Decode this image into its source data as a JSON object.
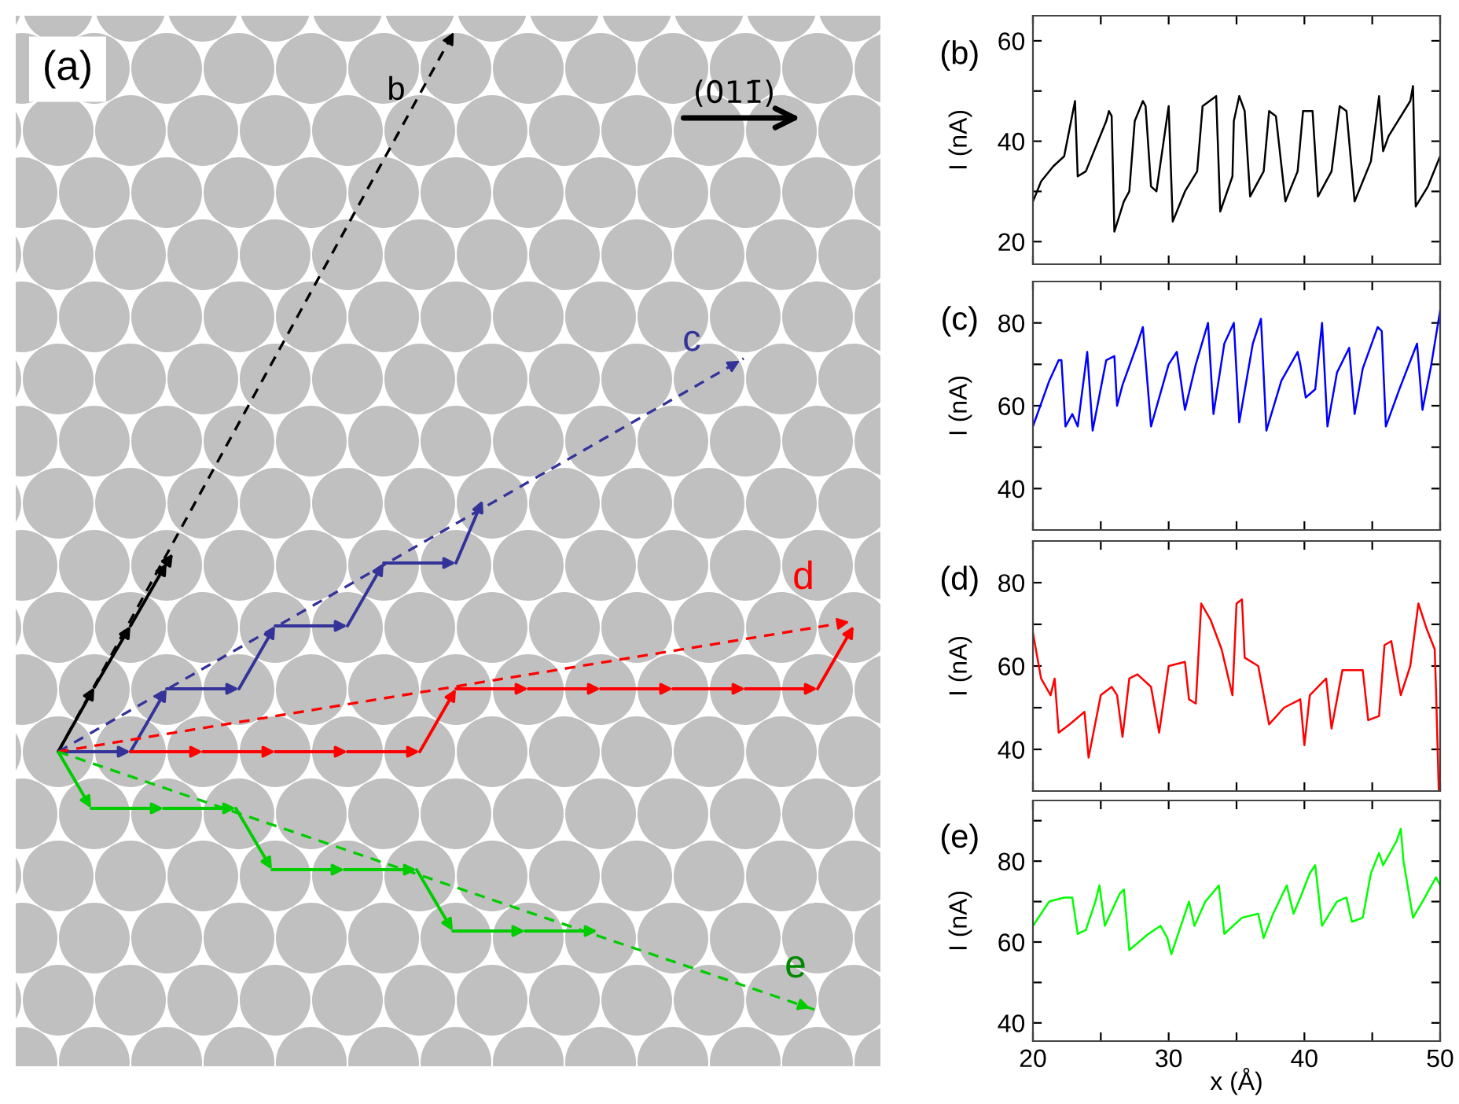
{
  "chart_data": [
    {
      "type": "other",
      "annotations": [
        "(a)",
        "b",
        "c",
        "d",
        "e",
        "(011̄)"
      ]
    },
    {
      "type": "line",
      "title": "(b)",
      "ylabel": "I (nA)",
      "tick_labels": "y",
      "xlim": [
        20,
        50
      ],
      "ylim": [
        15.5,
        65
      ],
      "xticks": [
        20,
        {
          "value": 25,
          "label": null
        },
        30,
        {
          "value": 35,
          "label": null
        },
        40,
        {
          "value": 45,
          "label": null
        },
        50
      ],
      "yticks": [
        20,
        {
          "value": 30,
          "label": null
        },
        40,
        {
          "value": 50,
          "label": null
        },
        60
      ],
      "x": [
        20,
        20.6,
        21.5,
        22.3,
        23.1,
        23.3,
        23.9,
        25.4,
        25.6,
        25.8,
        26.0,
        26.7,
        27.1,
        27.5,
        28.1,
        28.3,
        28.7,
        29.1,
        30.0,
        30.3,
        31.2,
        32.1,
        32.5,
        33.5,
        33.8,
        34.7,
        34.8,
        35.2,
        35.6,
        36.0,
        37.0,
        37.4,
        37.9,
        38.6,
        39.5,
        39.9,
        40.6,
        41.0,
        42.0,
        42.6,
        43.1,
        43.7,
        44.9,
        45.5,
        45.8,
        46.2,
        47.8,
        48.0,
        48.2,
        49.1,
        50.0
      ],
      "series": [
        {
          "color": "#000000",
          "values": [
            28,
            32,
            35,
            37,
            48,
            33,
            34,
            44,
            46,
            45,
            22,
            28,
            30,
            44,
            48,
            47,
            31,
            30,
            47,
            24,
            30,
            34,
            47,
            49,
            26,
            33,
            44,
            49,
            46,
            29,
            34,
            46,
            45,
            28,
            34,
            46,
            46,
            29,
            34,
            47,
            46,
            28,
            36,
            49,
            38,
            41,
            48,
            51,
            27,
            31,
            37
          ]
        }
      ]
    },
    {
      "type": "line",
      "title": "(c)",
      "ylabel": "I (nA)",
      "tick_labels": "y",
      "xlim": [
        20,
        50
      ],
      "ylim": [
        30,
        90
      ],
      "xticks": [
        20,
        {
          "value": 25,
          "label": null
        },
        30,
        {
          "value": 35,
          "label": null
        },
        40,
        {
          "value": 45,
          "label": null
        },
        50
      ],
      "yticks": [
        40,
        {
          "value": 50,
          "label": null
        },
        60,
        {
          "value": 70,
          "label": null
        },
        80
      ],
      "x": [
        20,
        21.2,
        21.9,
        22.1,
        22.4,
        22.9,
        23.3,
        24.0,
        24.4,
        25.4,
        26.0,
        26.2,
        26.6,
        27.7,
        28.1,
        28.7,
        30.0,
        30.6,
        31.2,
        32.0,
        32.9,
        33.3,
        34.1,
        34.8,
        35.2,
        36.2,
        36.8,
        37.2,
        38.3,
        39.5,
        39.7,
        40.1,
        40.8,
        41.3,
        41.7,
        42.4,
        43.3,
        43.7,
        44.3,
        45.4,
        45.7,
        46.0,
        47.0,
        48.3,
        48.7,
        49.3,
        50.0
      ],
      "series": [
        {
          "color": "#0000ff",
          "values": [
            55,
            66,
            71,
            71,
            55,
            58,
            55,
            73,
            54,
            71,
            72,
            60,
            65,
            75,
            79,
            55,
            70,
            73,
            59,
            70,
            80,
            58,
            75,
            80,
            56,
            75,
            81,
            54,
            66,
            73,
            70,
            62,
            64,
            80,
            55,
            68,
            74,
            58,
            69,
            79,
            78,
            55,
            64,
            75,
            59,
            69,
            83
          ]
        }
      ]
    },
    {
      "type": "line",
      "title": "(d)",
      "ylabel": "I (nA)",
      "tick_labels": "y",
      "xlim": [
        20,
        50
      ],
      "ylim": [
        30,
        90
      ],
      "xticks": [
        20,
        {
          "value": 25,
          "label": null
        },
        30,
        {
          "value": 35,
          "label": null
        },
        40,
        {
          "value": 45,
          "label": null
        },
        50
      ],
      "yticks": [
        40,
        {
          "value": 50,
          "label": null
        },
        60,
        {
          "value": 70,
          "label": null
        },
        80
      ],
      "x": [
        20,
        20.6,
        21.3,
        21.6,
        21.9,
        22.7,
        23.8,
        24.1,
        25.0,
        25.8,
        26.2,
        26.6,
        27.1,
        27.7,
        28.7,
        29.3,
        30.0,
        31.2,
        31.5,
        32.0,
        32.4,
        33.1,
        33.9,
        34.7,
        35.0,
        35.4,
        35.6,
        36.6,
        37.4,
        38.5,
        39.7,
        40.0,
        40.4,
        41.6,
        42.0,
        42.8,
        44.3,
        44.7,
        45.5,
        45.9,
        46.4,
        47.1,
        47.8,
        48.4,
        49.0,
        49.6,
        49.7,
        49.9
      ],
      "series": [
        {
          "color": "#ff0000",
          "values": [
            68,
            57,
            53,
            57,
            44,
            46,
            49,
            38,
            53,
            55,
            53,
            43,
            57,
            58,
            55,
            44,
            60,
            61,
            52,
            51,
            75,
            71,
            64,
            53,
            75,
            76,
            62,
            60,
            46,
            50,
            52,
            41,
            53,
            57,
            45,
            59,
            59,
            47,
            48,
            65,
            66,
            53,
            60,
            75,
            69,
            64,
            54,
            30
          ]
        }
      ]
    },
    {
      "type": "line",
      "title": "(e)",
      "ylabel": "I (nA)",
      "xlabel": "x (Å)",
      "xlim": [
        20,
        50
      ],
      "ylim": [
        35.5,
        95
      ],
      "xticks": [
        20,
        {
          "value": 25,
          "label": null
        },
        30,
        {
          "value": 35,
          "label": null
        },
        40,
        {
          "value": 45,
          "label": null
        },
        50
      ],
      "yticks": [
        40,
        {
          "value": 50,
          "label": null
        },
        60,
        {
          "value": 70,
          "label": null
        },
        80,
        {
          "value": 90,
          "label": null
        }
      ],
      "x": [
        20,
        21.2,
        22.3,
        22.9,
        23.3,
        23.9,
        24.6,
        24.9,
        25.3,
        26.4,
        26.7,
        27.1,
        28.5,
        29.4,
        29.9,
        30.2,
        30.8,
        31.5,
        31.9,
        32.7,
        33.7,
        34.1,
        35.4,
        36.6,
        37.0,
        37.7,
        38.7,
        39.2,
        39.7,
        40.4,
        40.8,
        41.3,
        42.4,
        43.1,
        43.5,
        44.3,
        44.9,
        45.5,
        45.8,
        46.8,
        47.1,
        47.3,
        48.0,
        48.7,
        49.7,
        50.0
      ],
      "series": [
        {
          "color": "#00ff00",
          "values": [
            64,
            70,
            71,
            71,
            62,
            63,
            70,
            74,
            64,
            72,
            73,
            58,
            62,
            64,
            61,
            57,
            63,
            70,
            64,
            70,
            74,
            62,
            66,
            67,
            61,
            67,
            74,
            67,
            71,
            77,
            79,
            64,
            70,
            71,
            65,
            66,
            77,
            82,
            79,
            85,
            88,
            80,
            66,
            70,
            76,
            74
          ]
        }
      ]
    }
  ]
}
